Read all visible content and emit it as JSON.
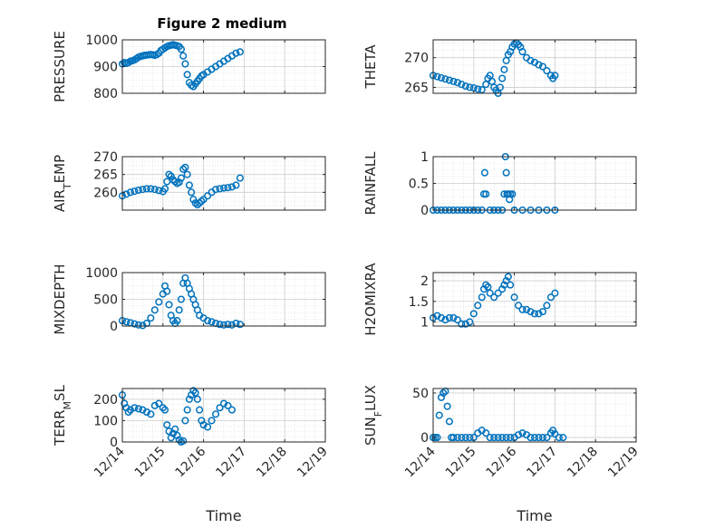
{
  "title": "Figure 2 medium",
  "xlabel": "Time",
  "x_ticks": [
    "12/14",
    "12/15",
    "12/16",
    "12/17",
    "12/18",
    "12/19"
  ],
  "colors": {
    "marker": "#0072BD",
    "grid": "#d9d9d9",
    "axis": "#262626"
  },
  "chart_data": [
    {
      "type": "scatter",
      "ylabel": "PRESSURE",
      "ylim": [
        800,
        1000
      ],
      "yticks": [
        800,
        900,
        1000
      ],
      "xlim": [
        0,
        5
      ],
      "grid": true,
      "points": [
        [
          0,
          910
        ],
        [
          0.05,
          915
        ],
        [
          0.1,
          912
        ],
        [
          0.15,
          915
        ],
        [
          0.2,
          920
        ],
        [
          0.25,
          922
        ],
        [
          0.3,
          925
        ],
        [
          0.35,
          930
        ],
        [
          0.4,
          935
        ],
        [
          0.45,
          938
        ],
        [
          0.5,
          940
        ],
        [
          0.55,
          942
        ],
        [
          0.6,
          943
        ],
        [
          0.65,
          944
        ],
        [
          0.7,
          945
        ],
        [
          0.75,
          944
        ],
        [
          0.8,
          942
        ],
        [
          0.85,
          945
        ],
        [
          0.9,
          950
        ],
        [
          0.95,
          960
        ],
        [
          1.0,
          965
        ],
        [
          1.05,
          970
        ],
        [
          1.1,
          975
        ],
        [
          1.15,
          978
        ],
        [
          1.2,
          980
        ],
        [
          1.25,
          982
        ],
        [
          1.3,
          980
        ],
        [
          1.35,
          978
        ],
        [
          1.4,
          975
        ],
        [
          1.45,
          965
        ],
        [
          1.5,
          940
        ],
        [
          1.55,
          910
        ],
        [
          1.6,
          870
        ],
        [
          1.65,
          840
        ],
        [
          1.7,
          830
        ],
        [
          1.75,
          825
        ],
        [
          1.8,
          835
        ],
        [
          1.85,
          845
        ],
        [
          1.9,
          855
        ],
        [
          1.95,
          865
        ],
        [
          2.0,
          870
        ],
        [
          2.1,
          880
        ],
        [
          2.2,
          890
        ],
        [
          2.3,
          900
        ],
        [
          2.4,
          910
        ],
        [
          2.5,
          920
        ],
        [
          2.6,
          930
        ],
        [
          2.7,
          940
        ],
        [
          2.8,
          950
        ],
        [
          2.9,
          955
        ]
      ]
    },
    {
      "type": "scatter",
      "ylabel": "THETA",
      "ylim": [
        264,
        273
      ],
      "yticks": [
        265,
        270
      ],
      "xlim": [
        0,
        5
      ],
      "grid": true,
      "points": [
        [
          0,
          267
        ],
        [
          0.1,
          266.8
        ],
        [
          0.2,
          266.6
        ],
        [
          0.3,
          266.4
        ],
        [
          0.4,
          266.2
        ],
        [
          0.5,
          266
        ],
        [
          0.6,
          265.8
        ],
        [
          0.7,
          265.5
        ],
        [
          0.8,
          265.2
        ],
        [
          0.9,
          265
        ],
        [
          1.0,
          264.9
        ],
        [
          1.1,
          264.7
        ],
        [
          1.2,
          264.6
        ],
        [
          1.3,
          265.5
        ],
        [
          1.35,
          266.5
        ],
        [
          1.4,
          267
        ],
        [
          1.45,
          266
        ],
        [
          1.5,
          265
        ],
        [
          1.55,
          264.5
        ],
        [
          1.6,
          264
        ],
        [
          1.65,
          265
        ],
        [
          1.7,
          266.5
        ],
        [
          1.75,
          268
        ],
        [
          1.8,
          269.5
        ],
        [
          1.85,
          270.5
        ],
        [
          1.9,
          271
        ],
        [
          1.95,
          271.8
        ],
        [
          2.0,
          272.3
        ],
        [
          2.05,
          272.5
        ],
        [
          2.1,
          272.2
        ],
        [
          2.15,
          271.8
        ],
        [
          2.2,
          271
        ],
        [
          2.3,
          270
        ],
        [
          2.4,
          269.5
        ],
        [
          2.5,
          269.2
        ],
        [
          2.6,
          268.8
        ],
        [
          2.7,
          268.5
        ],
        [
          2.8,
          267.8
        ],
        [
          2.9,
          267
        ],
        [
          2.95,
          266.5
        ],
        [
          3.0,
          267
        ]
      ]
    },
    {
      "type": "scatter",
      "ylabel": "AIR_TEMP",
      "ylim": [
        255,
        270
      ],
      "yticks": [
        260,
        265,
        270
      ],
      "xlim": [
        0,
        5
      ],
      "grid": true,
      "points": [
        [
          0,
          259
        ],
        [
          0.1,
          259.5
        ],
        [
          0.2,
          260
        ],
        [
          0.3,
          260.3
        ],
        [
          0.4,
          260.6
        ],
        [
          0.5,
          260.8
        ],
        [
          0.6,
          261
        ],
        [
          0.7,
          261
        ],
        [
          0.8,
          260.8
        ],
        [
          0.9,
          260.5
        ],
        [
          1.0,
          260.2
        ],
        [
          1.05,
          261
        ],
        [
          1.1,
          263
        ],
        [
          1.15,
          265
        ],
        [
          1.2,
          264.5
        ],
        [
          1.25,
          263.5
        ],
        [
          1.3,
          263
        ],
        [
          1.35,
          262.5
        ],
        [
          1.4,
          262.8
        ],
        [
          1.45,
          264
        ],
        [
          1.5,
          266.5
        ],
        [
          1.55,
          267
        ],
        [
          1.6,
          265
        ],
        [
          1.65,
          262
        ],
        [
          1.7,
          260
        ],
        [
          1.75,
          258
        ],
        [
          1.8,
          257
        ],
        [
          1.85,
          256.5
        ],
        [
          1.9,
          257
        ],
        [
          1.95,
          257.5
        ],
        [
          2.0,
          258
        ],
        [
          2.1,
          259
        ],
        [
          2.2,
          260
        ],
        [
          2.3,
          260.8
        ],
        [
          2.4,
          261
        ],
        [
          2.5,
          261.2
        ],
        [
          2.6,
          261.3
        ],
        [
          2.7,
          261.5
        ],
        [
          2.8,
          262
        ],
        [
          2.9,
          264
        ]
      ]
    },
    {
      "type": "scatter",
      "ylabel": "RAINFALL",
      "ylim": [
        0,
        1
      ],
      "yticks": [
        0,
        0.5,
        1
      ],
      "xlim": [
        0,
        5
      ],
      "grid": true,
      "points": [
        [
          0,
          0
        ],
        [
          0.1,
          0
        ],
        [
          0.2,
          0
        ],
        [
          0.3,
          0
        ],
        [
          0.4,
          0
        ],
        [
          0.5,
          0
        ],
        [
          0.6,
          0
        ],
        [
          0.7,
          0
        ],
        [
          0.8,
          0
        ],
        [
          0.9,
          0
        ],
        [
          1.0,
          0
        ],
        [
          1.1,
          0
        ],
        [
          1.2,
          0
        ],
        [
          1.25,
          0.3
        ],
        [
          1.27,
          0.7
        ],
        [
          1.3,
          0.3
        ],
        [
          1.4,
          0
        ],
        [
          1.5,
          0
        ],
        [
          1.6,
          0
        ],
        [
          1.7,
          0
        ],
        [
          1.75,
          0.3
        ],
        [
          1.78,
          1.0
        ],
        [
          1.8,
          0.7
        ],
        [
          1.82,
          0.3
        ],
        [
          1.85,
          0.3
        ],
        [
          1.88,
          0.2
        ],
        [
          1.9,
          0.3
        ],
        [
          1.95,
          0.3
        ],
        [
          2.0,
          0
        ],
        [
          2.2,
          0
        ],
        [
          2.4,
          0
        ],
        [
          2.6,
          0
        ],
        [
          2.8,
          0
        ],
        [
          3.0,
          0
        ]
      ]
    },
    {
      "type": "scatter",
      "ylabel": "MIXDEPTH",
      "ylim": [
        0,
        1000
      ],
      "yticks": [
        0,
        500,
        1000
      ],
      "xlim": [
        0,
        5
      ],
      "grid": true,
      "points": [
        [
          0,
          100
        ],
        [
          0.1,
          80
        ],
        [
          0.2,
          60
        ],
        [
          0.3,
          40
        ],
        [
          0.4,
          20
        ],
        [
          0.5,
          10
        ],
        [
          0.6,
          50
        ],
        [
          0.7,
          150
        ],
        [
          0.8,
          300
        ],
        [
          0.9,
          450
        ],
        [
          1.0,
          600
        ],
        [
          1.05,
          750
        ],
        [
          1.1,
          650
        ],
        [
          1.15,
          400
        ],
        [
          1.2,
          200
        ],
        [
          1.25,
          100
        ],
        [
          1.3,
          50
        ],
        [
          1.35,
          100
        ],
        [
          1.4,
          300
        ],
        [
          1.45,
          500
        ],
        [
          1.5,
          800
        ],
        [
          1.55,
          900
        ],
        [
          1.6,
          800
        ],
        [
          1.65,
          700
        ],
        [
          1.7,
          600
        ],
        [
          1.75,
          500
        ],
        [
          1.8,
          400
        ],
        [
          1.85,
          300
        ],
        [
          1.9,
          200
        ],
        [
          2.0,
          150
        ],
        [
          2.1,
          100
        ],
        [
          2.2,
          80
        ],
        [
          2.3,
          50
        ],
        [
          2.4,
          30
        ],
        [
          2.5,
          20
        ],
        [
          2.6,
          30
        ],
        [
          2.7,
          20
        ],
        [
          2.8,
          50
        ],
        [
          2.9,
          30
        ]
      ]
    },
    {
      "type": "scatter",
      "ylabel": "H2OMIXRA",
      "ylim": [
        0.9,
        2.2
      ],
      "yticks": [
        1,
        1.5,
        2
      ],
      "xlim": [
        0,
        5
      ],
      "grid": true,
      "points": [
        [
          0,
          1.1
        ],
        [
          0.1,
          1.15
        ],
        [
          0.2,
          1.1
        ],
        [
          0.3,
          1.05
        ],
        [
          0.4,
          1.1
        ],
        [
          0.5,
          1.1
        ],
        [
          0.6,
          1.05
        ],
        [
          0.7,
          0.95
        ],
        [
          0.8,
          0.95
        ],
        [
          0.9,
          1.0
        ],
        [
          1.0,
          1.2
        ],
        [
          1.1,
          1.4
        ],
        [
          1.2,
          1.6
        ],
        [
          1.25,
          1.8
        ],
        [
          1.3,
          1.9
        ],
        [
          1.35,
          1.85
        ],
        [
          1.4,
          1.7
        ],
        [
          1.5,
          1.6
        ],
        [
          1.6,
          1.7
        ],
        [
          1.7,
          1.8
        ],
        [
          1.75,
          1.9
        ],
        [
          1.8,
          2.0
        ],
        [
          1.85,
          2.1
        ],
        [
          1.9,
          1.9
        ],
        [
          2.0,
          1.6
        ],
        [
          2.1,
          1.4
        ],
        [
          2.2,
          1.3
        ],
        [
          2.3,
          1.3
        ],
        [
          2.4,
          1.25
        ],
        [
          2.5,
          1.2
        ],
        [
          2.6,
          1.2
        ],
        [
          2.7,
          1.25
        ],
        [
          2.8,
          1.4
        ],
        [
          2.9,
          1.6
        ],
        [
          3.0,
          1.7
        ]
      ]
    },
    {
      "type": "scatter",
      "ylabel": "TERR_MSL",
      "ylim": [
        0,
        250
      ],
      "yticks": [
        0,
        100,
        200
      ],
      "xlim": [
        0,
        5
      ],
      "grid": true,
      "points": [
        [
          0,
          220
        ],
        [
          0.05,
          180
        ],
        [
          0.1,
          160
        ],
        [
          0.15,
          140
        ],
        [
          0.2,
          150
        ],
        [
          0.3,
          160
        ],
        [
          0.4,
          155
        ],
        [
          0.5,
          150
        ],
        [
          0.6,
          140
        ],
        [
          0.7,
          130
        ],
        [
          0.8,
          170
        ],
        [
          0.9,
          180
        ],
        [
          1.0,
          160
        ],
        [
          1.05,
          150
        ],
        [
          1.1,
          80
        ],
        [
          1.15,
          50
        ],
        [
          1.2,
          20
        ],
        [
          1.25,
          40
        ],
        [
          1.3,
          60
        ],
        [
          1.35,
          30
        ],
        [
          1.4,
          10
        ],
        [
          1.45,
          0
        ],
        [
          1.5,
          5
        ],
        [
          1.55,
          100
        ],
        [
          1.6,
          150
        ],
        [
          1.65,
          200
        ],
        [
          1.7,
          220
        ],
        [
          1.75,
          240
        ],
        [
          1.8,
          230
        ],
        [
          1.85,
          200
        ],
        [
          1.9,
          150
        ],
        [
          1.95,
          100
        ],
        [
          2.0,
          80
        ],
        [
          2.1,
          70
        ],
        [
          2.2,
          100
        ],
        [
          2.3,
          130
        ],
        [
          2.4,
          160
        ],
        [
          2.5,
          180
        ],
        [
          2.6,
          170
        ],
        [
          2.7,
          150
        ]
      ]
    },
    {
      "type": "scatter",
      "ylabel": "SUN_FLUX",
      "ylim": [
        -5,
        55
      ],
      "yticks": [
        0,
        50
      ],
      "xlim": [
        0,
        5
      ],
      "grid": true,
      "points": [
        [
          0,
          0
        ],
        [
          0.05,
          0
        ],
        [
          0.1,
          0
        ],
        [
          0.15,
          25
        ],
        [
          0.2,
          45
        ],
        [
          0.25,
          50
        ],
        [
          0.3,
          52
        ],
        [
          0.35,
          35
        ],
        [
          0.4,
          18
        ],
        [
          0.45,
          0
        ],
        [
          0.5,
          0
        ],
        [
          0.6,
          0
        ],
        [
          0.7,
          0
        ],
        [
          0.8,
          0
        ],
        [
          0.9,
          0
        ],
        [
          1.0,
          0
        ],
        [
          1.1,
          5
        ],
        [
          1.2,
          8
        ],
        [
          1.3,
          5
        ],
        [
          1.4,
          0
        ],
        [
          1.5,
          0
        ],
        [
          1.6,
          0
        ],
        [
          1.7,
          0
        ],
        [
          1.8,
          0
        ],
        [
          1.9,
          0
        ],
        [
          2.0,
          0
        ],
        [
          2.1,
          3
        ],
        [
          2.2,
          5
        ],
        [
          2.3,
          3
        ],
        [
          2.4,
          0
        ],
        [
          2.5,
          0
        ],
        [
          2.6,
          0
        ],
        [
          2.7,
          0
        ],
        [
          2.8,
          0
        ],
        [
          2.9,
          5
        ],
        [
          2.95,
          8
        ],
        [
          3.0,
          4
        ],
        [
          3.1,
          0
        ],
        [
          3.2,
          0
        ]
      ]
    }
  ]
}
